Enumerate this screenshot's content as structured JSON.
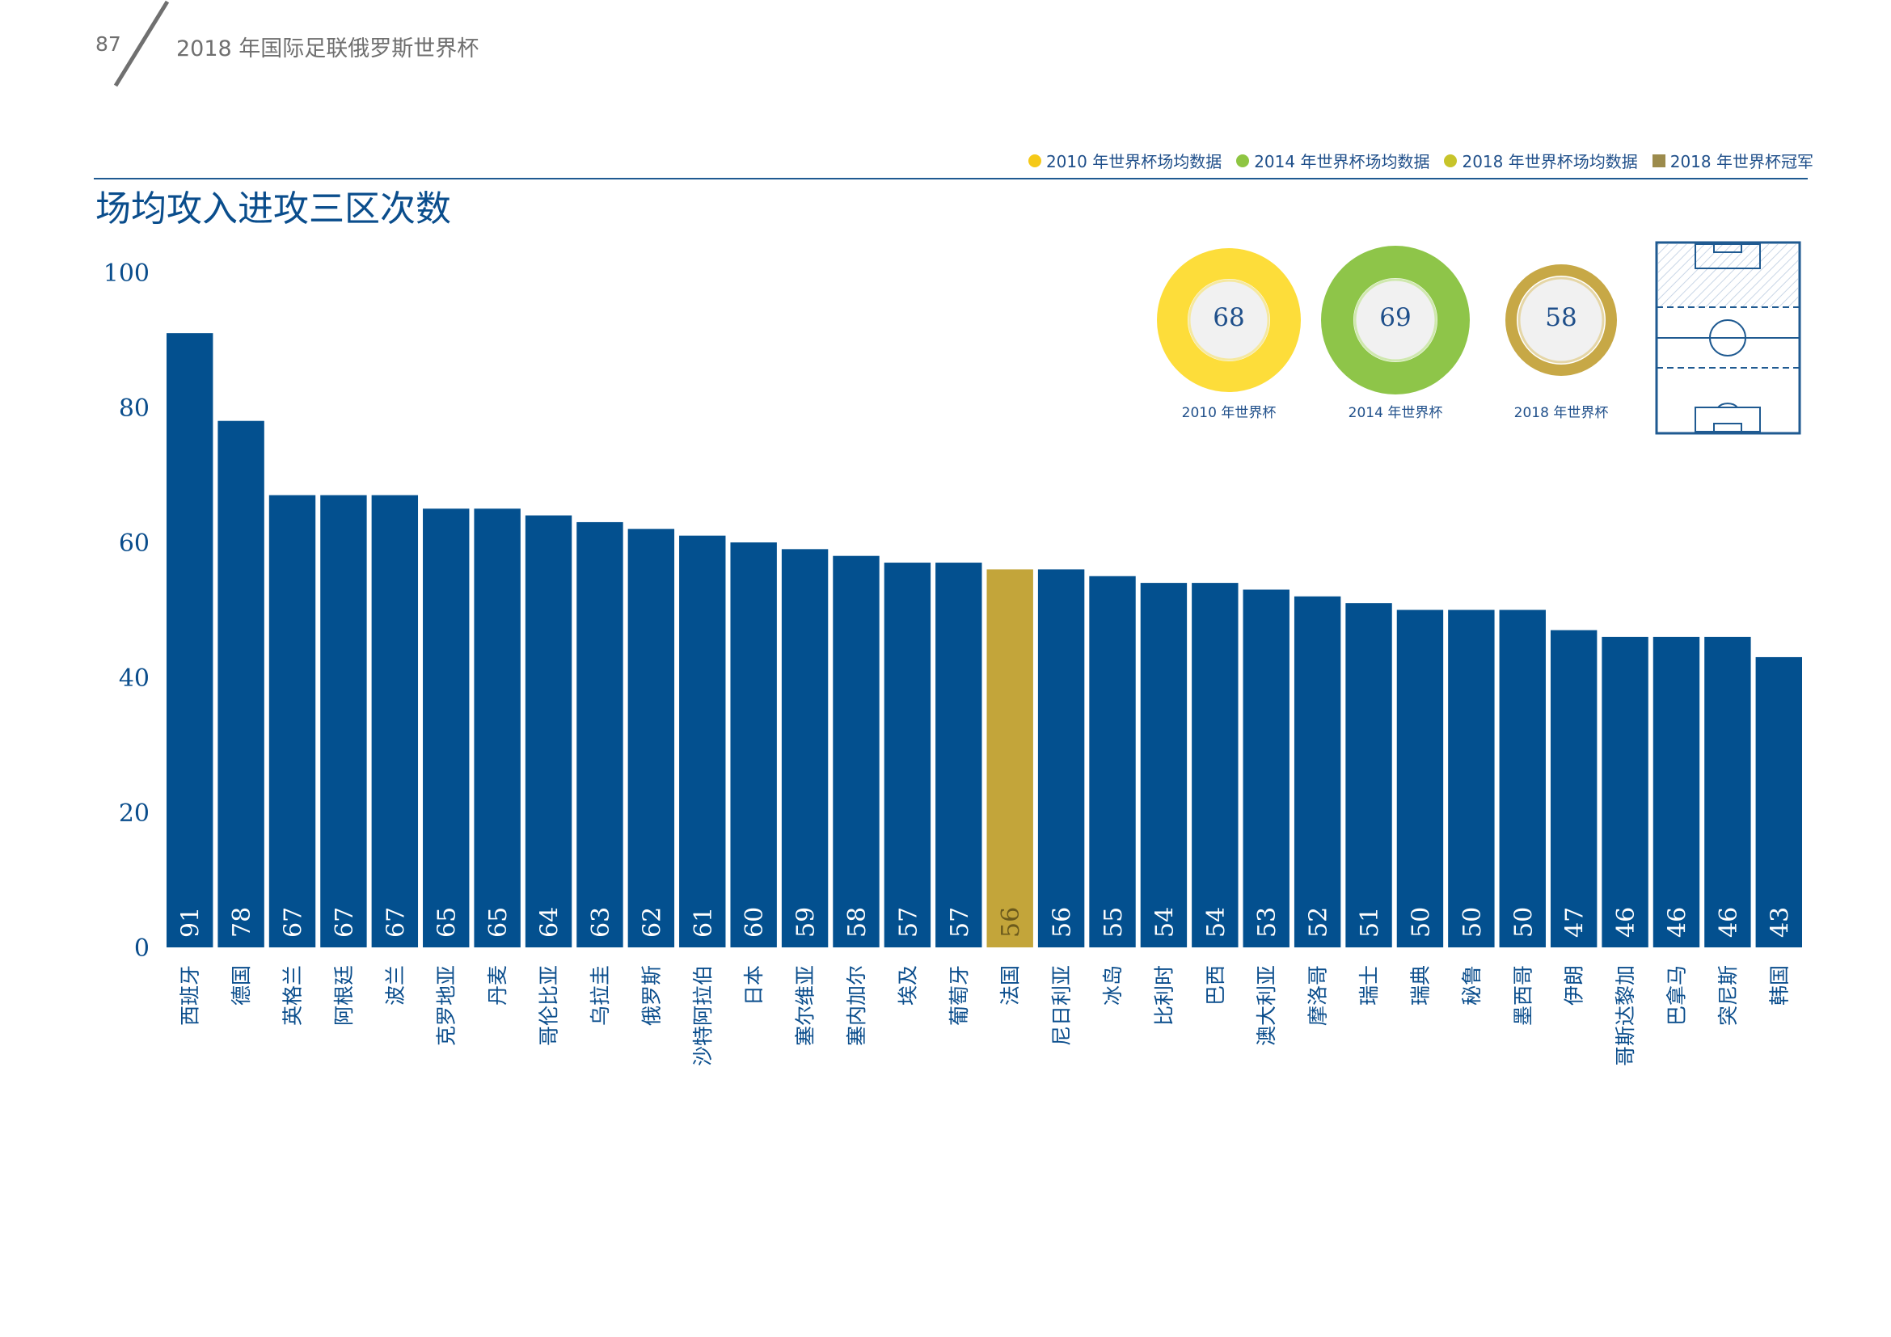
{
  "header": {
    "page_number": "87",
    "document_title": "2018 年国际足联俄罗斯世界杯"
  },
  "legend": [
    {
      "label": "2010 年世界杯场均数据",
      "color": "#f5c918",
      "shape": "dot"
    },
    {
      "label": "2014 年世界杯场均数据",
      "color": "#8ec542",
      "shape": "dot"
    },
    {
      "label": "2018 年世界杯场均数据",
      "color": "#c7c42a",
      "shape": "dot"
    },
    {
      "label": "2018 年世界杯冠军",
      "color": "#9c8b4c",
      "shape": "square"
    }
  ],
  "donuts": [
    {
      "label": "2010 年世界杯",
      "value": "68",
      "ring_color": "#fddd3a",
      "inner_border": "#f5e8a0"
    },
    {
      "label": "2014 年世界杯",
      "value": "69",
      "ring_color": "#8ec549",
      "inner_border": "#cfe8ae"
    },
    {
      "label": "2018 年世界杯",
      "value": "58",
      "ring_color": "#c7a846",
      "inner_border": "#e5d6a6"
    }
  ],
  "pitch_icon": "football-pitch-attacking-third-icon",
  "colors": {
    "bar": "#03508f",
    "highlight_bar": "#c3a53a",
    "axis_text": "#0a4d8c"
  },
  "chart_data": {
    "type": "bar",
    "title": "场均攻入进攻三区次数",
    "ylim": [
      0,
      100
    ],
    "yticks": [
      0,
      20,
      40,
      60,
      80,
      100
    ],
    "categories": [
      "西班牙",
      "德国",
      "英格兰",
      "阿根廷",
      "波兰",
      "克罗地亚",
      "丹麦",
      "哥伦比亚",
      "乌拉圭",
      "俄罗斯",
      "沙特阿拉伯",
      "日本",
      "塞尔维亚",
      "塞内加尔",
      "埃及",
      "葡萄牙",
      "法国",
      "尼日利亚",
      "冰岛",
      "比利时",
      "巴西",
      "澳大利亚",
      "摩洛哥",
      "瑞士",
      "瑞典",
      "秘鲁",
      "墨西哥",
      "伊朗",
      "哥斯达黎加",
      "巴拿马",
      "突尼斯",
      "韩国"
    ],
    "values": [
      91,
      78,
      67,
      67,
      67,
      65,
      65,
      64,
      63,
      62,
      61,
      60,
      59,
      58,
      57,
      57,
      56,
      56,
      55,
      54,
      54,
      53,
      52,
      51,
      50,
      50,
      50,
      47,
      46,
      46,
      46,
      43
    ],
    "highlight_category": "法国",
    "value_labels_rotated": true,
    "grid": false
  }
}
